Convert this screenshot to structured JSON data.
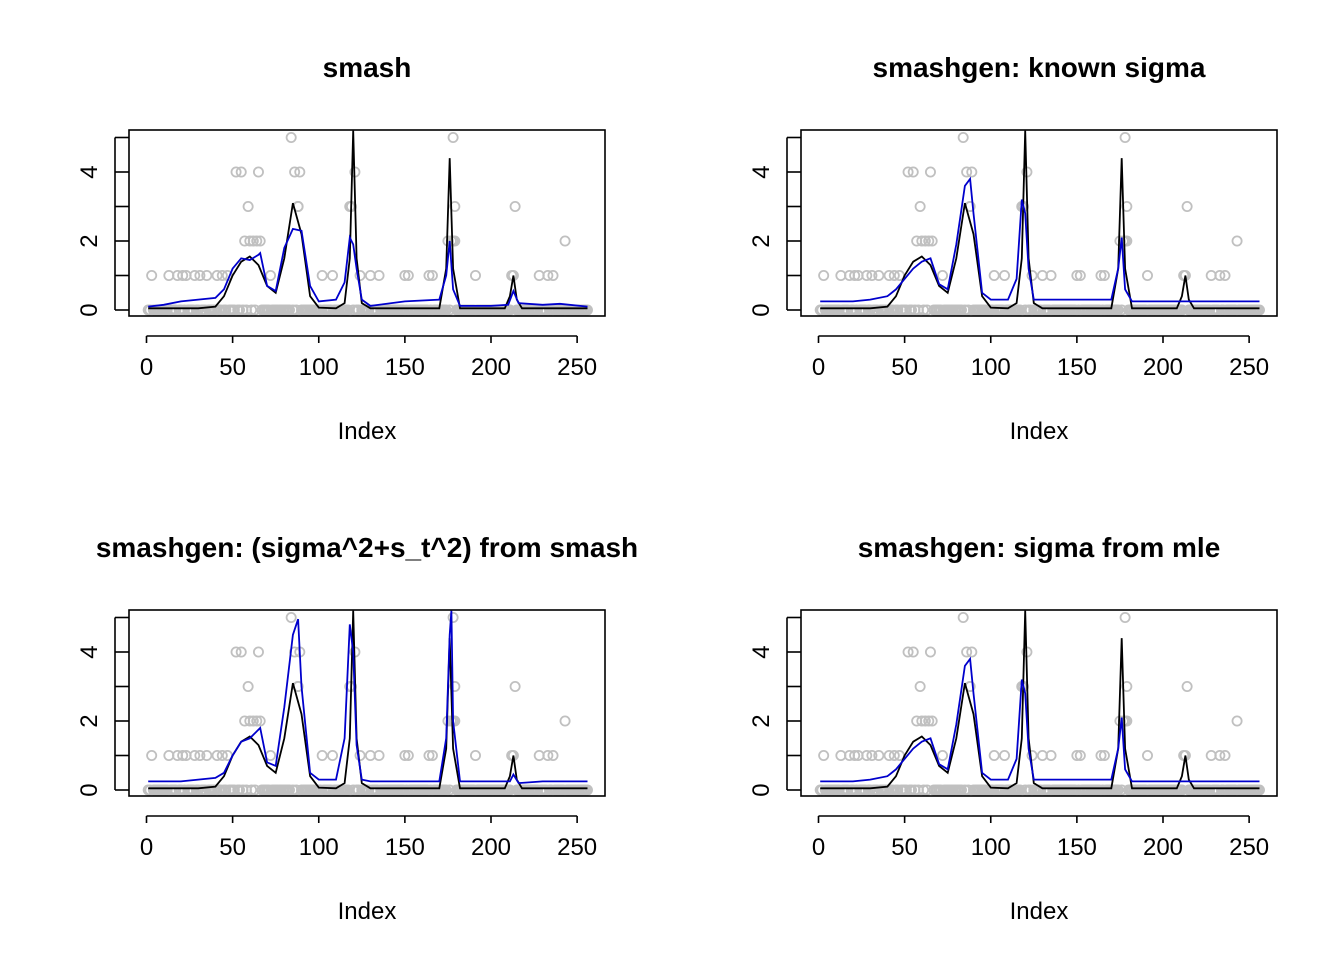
{
  "colors": {
    "observations": "#c0c0c0",
    "truth": "#000000",
    "estimate": "#0000cc"
  },
  "chart_data": [
    {
      "type": "line",
      "title": "smash",
      "xlabel": "Index",
      "ylabel": "",
      "xlim": [
        0,
        256
      ],
      "ylim": [
        0,
        5
      ],
      "xticks": [
        "0",
        "50",
        "100",
        "150",
        "200",
        "250"
      ],
      "yticks": [
        "0",
        "2",
        "4"
      ],
      "truth": {
        "x": [
          1,
          30,
          40,
          45,
          50,
          55,
          60,
          65,
          70,
          75,
          80,
          85,
          90,
          95,
          100,
          110,
          115,
          118,
          120,
          122,
          125,
          130,
          150,
          170,
          174,
          176,
          178,
          182,
          200,
          208,
          211,
          213,
          215,
          218,
          250,
          256
        ],
        "y": [
          0.05,
          0.05,
          0.1,
          0.4,
          1.0,
          1.4,
          1.55,
          1.3,
          0.7,
          0.5,
          1.5,
          3.1,
          2.2,
          0.4,
          0.07,
          0.05,
          0.2,
          1.5,
          5.2,
          1.5,
          0.2,
          0.05,
          0.05,
          0.05,
          1.2,
          4.4,
          1.2,
          0.05,
          0.05,
          0.05,
          0.4,
          1.0,
          0.3,
          0.05,
          0.05,
          0.05
        ]
      },
      "estimate": {
        "x": [
          1,
          10,
          20,
          30,
          40,
          45,
          50,
          55,
          60,
          65,
          66,
          70,
          75,
          80,
          85,
          90,
          95,
          100,
          110,
          115,
          118,
          120,
          122,
          125,
          130,
          150,
          170,
          174,
          176,
          178,
          182,
          200,
          210,
          213,
          216,
          230,
          240,
          256
        ],
        "y": [
          0.1,
          0.15,
          0.25,
          0.3,
          0.35,
          0.6,
          1.2,
          1.5,
          1.45,
          1.6,
          1.65,
          0.7,
          0.55,
          1.8,
          2.35,
          2.3,
          0.7,
          0.25,
          0.3,
          0.8,
          2.1,
          1.9,
          1.2,
          0.3,
          0.12,
          0.25,
          0.3,
          1.0,
          2.0,
          0.6,
          0.12,
          0.12,
          0.15,
          0.55,
          0.2,
          0.15,
          0.18,
          0.1
        ]
      },
      "observations": {
        "x": [
          3,
          13,
          18,
          21,
          23,
          28,
          31,
          35,
          41,
          44,
          47,
          52,
          55,
          57,
          59,
          60,
          62,
          64,
          66,
          65,
          72,
          84,
          86,
          88,
          88,
          89,
          102,
          108,
          118,
          119,
          121,
          124,
          130,
          135,
          150,
          152,
          164,
          166,
          175,
          177,
          178,
          178,
          179,
          179,
          191,
          212,
          213,
          214,
          228,
          233,
          236,
          243
        ],
        "y": [
          1,
          1,
          1,
          1,
          1,
          1,
          1,
          1,
          1,
          1,
          1,
          4,
          4,
          2,
          3,
          2,
          2,
          2,
          2,
          4,
          1,
          5,
          4,
          3,
          3,
          4,
          1,
          1,
          3,
          3,
          4,
          1,
          1,
          1,
          1,
          1,
          1,
          1,
          2,
          2,
          2,
          5,
          3,
          2,
          1,
          1,
          1,
          3,
          1,
          1,
          1,
          2
        ]
      }
    },
    {
      "type": "line",
      "title": "smashgen: known sigma",
      "xlabel": "Index",
      "ylabel": "",
      "xlim": [
        0,
        256
      ],
      "ylim": [
        0,
        5
      ],
      "xticks": [
        "0",
        "50",
        "100",
        "150",
        "200",
        "250"
      ],
      "yticks": [
        "0",
        "2",
        "4"
      ],
      "truth": {
        "x": [
          1,
          30,
          40,
          45,
          50,
          55,
          60,
          65,
          70,
          75,
          80,
          85,
          90,
          95,
          100,
          110,
          115,
          118,
          120,
          122,
          125,
          130,
          150,
          170,
          174,
          176,
          178,
          182,
          200,
          208,
          211,
          213,
          215,
          218,
          250,
          256
        ],
        "y": [
          0.05,
          0.05,
          0.1,
          0.4,
          1.0,
          1.4,
          1.55,
          1.3,
          0.7,
          0.5,
          1.5,
          3.1,
          2.2,
          0.4,
          0.07,
          0.05,
          0.2,
          1.5,
          5.2,
          1.5,
          0.2,
          0.05,
          0.05,
          0.05,
          1.2,
          4.4,
          1.2,
          0.05,
          0.05,
          0.05,
          0.4,
          1.0,
          0.3,
          0.05,
          0.05,
          0.05
        ]
      },
      "estimate": {
        "x": [
          1,
          20,
          30,
          40,
          45,
          50,
          55,
          60,
          65,
          70,
          75,
          80,
          85,
          88,
          90,
          95,
          100,
          110,
          115,
          118,
          120,
          122,
          125,
          130,
          150,
          170,
          174,
          176,
          178,
          182,
          200,
          213,
          230,
          256
        ],
        "y": [
          0.25,
          0.25,
          0.3,
          0.4,
          0.6,
          0.9,
          1.2,
          1.4,
          1.5,
          0.75,
          0.6,
          1.9,
          3.6,
          3.8,
          2.8,
          0.5,
          0.3,
          0.3,
          0.9,
          3.2,
          2.8,
          1.2,
          0.3,
          0.3,
          0.3,
          0.3,
          1.2,
          2.1,
          0.6,
          0.25,
          0.25,
          0.25,
          0.25,
          0.25
        ]
      },
      "observations": {
        "x": [
          3,
          13,
          18,
          21,
          23,
          28,
          31,
          35,
          41,
          44,
          47,
          52,
          55,
          57,
          59,
          60,
          62,
          64,
          66,
          65,
          72,
          84,
          86,
          88,
          88,
          89,
          102,
          108,
          118,
          119,
          121,
          124,
          130,
          135,
          150,
          152,
          164,
          166,
          175,
          177,
          178,
          178,
          179,
          179,
          191,
          212,
          213,
          214,
          228,
          233,
          236,
          243
        ],
        "y": [
          1,
          1,
          1,
          1,
          1,
          1,
          1,
          1,
          1,
          1,
          1,
          4,
          4,
          2,
          3,
          2,
          2,
          2,
          2,
          4,
          1,
          5,
          4,
          3,
          3,
          4,
          1,
          1,
          3,
          3,
          4,
          1,
          1,
          1,
          1,
          1,
          1,
          1,
          2,
          2,
          2,
          5,
          3,
          2,
          1,
          1,
          1,
          3,
          1,
          1,
          1,
          2
        ]
      }
    },
    {
      "type": "line",
      "title": "smashgen: (sigma^2+s_t^2) from smash",
      "xlabel": "Index",
      "ylabel": "",
      "xlim": [
        0,
        256
      ],
      "ylim": [
        0,
        5
      ],
      "xticks": [
        "0",
        "50",
        "100",
        "150",
        "200",
        "250"
      ],
      "yticks": [
        "0",
        "2",
        "4"
      ],
      "truth": {
        "x": [
          1,
          30,
          40,
          45,
          50,
          55,
          60,
          65,
          70,
          75,
          80,
          85,
          90,
          95,
          100,
          110,
          115,
          118,
          120,
          122,
          125,
          130,
          150,
          170,
          174,
          176,
          178,
          182,
          200,
          208,
          211,
          213,
          215,
          218,
          250,
          256
        ],
        "y": [
          0.05,
          0.05,
          0.1,
          0.4,
          1.0,
          1.4,
          1.55,
          1.3,
          0.7,
          0.5,
          1.5,
          3.1,
          2.2,
          0.4,
          0.07,
          0.05,
          0.2,
          1.5,
          5.2,
          1.5,
          0.2,
          0.05,
          0.05,
          0.05,
          1.2,
          4.4,
          1.2,
          0.05,
          0.05,
          0.05,
          0.4,
          1.0,
          0.3,
          0.05,
          0.05,
          0.05
        ]
      },
      "estimate": {
        "x": [
          1,
          20,
          30,
          40,
          45,
          50,
          55,
          60,
          65,
          66,
          70,
          75,
          80,
          85,
          88,
          90,
          95,
          100,
          110,
          115,
          118,
          120,
          122,
          125,
          130,
          150,
          170,
          174,
          176,
          177,
          178,
          182,
          200,
          211,
          213,
          216,
          230,
          256
        ],
        "y": [
          0.25,
          0.25,
          0.3,
          0.35,
          0.5,
          1.0,
          1.4,
          1.5,
          1.75,
          1.8,
          0.8,
          0.7,
          2.4,
          4.5,
          4.95,
          3.0,
          0.5,
          0.3,
          0.3,
          1.5,
          4.8,
          4.0,
          1.3,
          0.3,
          0.25,
          0.25,
          0.25,
          1.5,
          4.5,
          5.2,
          2.0,
          0.25,
          0.25,
          0.25,
          0.45,
          0.2,
          0.25,
          0.25
        ]
      },
      "observations": {
        "x": [
          3,
          13,
          18,
          21,
          23,
          28,
          31,
          35,
          41,
          44,
          47,
          52,
          55,
          57,
          59,
          60,
          62,
          64,
          66,
          65,
          72,
          84,
          86,
          88,
          88,
          89,
          102,
          108,
          118,
          119,
          121,
          124,
          130,
          135,
          150,
          152,
          164,
          166,
          175,
          177,
          178,
          178,
          179,
          179,
          191,
          212,
          213,
          214,
          228,
          233,
          236,
          243
        ],
        "y": [
          1,
          1,
          1,
          1,
          1,
          1,
          1,
          1,
          1,
          1,
          1,
          4,
          4,
          2,
          3,
          2,
          2,
          2,
          2,
          4,
          1,
          5,
          4,
          3,
          3,
          4,
          1,
          1,
          3,
          3,
          4,
          1,
          1,
          1,
          1,
          1,
          1,
          1,
          2,
          2,
          2,
          5,
          3,
          2,
          1,
          1,
          1,
          3,
          1,
          1,
          1,
          2
        ]
      }
    },
    {
      "type": "line",
      "title": "smashgen: sigma from mle",
      "xlabel": "Index",
      "ylabel": "",
      "xlim": [
        0,
        256
      ],
      "ylim": [
        0,
        5
      ],
      "xticks": [
        "0",
        "50",
        "100",
        "150",
        "200",
        "250"
      ],
      "yticks": [
        "0",
        "2",
        "4"
      ],
      "truth": {
        "x": [
          1,
          30,
          40,
          45,
          50,
          55,
          60,
          65,
          70,
          75,
          80,
          85,
          90,
          95,
          100,
          110,
          115,
          118,
          120,
          122,
          125,
          130,
          150,
          170,
          174,
          176,
          178,
          182,
          200,
          208,
          211,
          213,
          215,
          218,
          250,
          256
        ],
        "y": [
          0.05,
          0.05,
          0.1,
          0.4,
          1.0,
          1.4,
          1.55,
          1.3,
          0.7,
          0.5,
          1.5,
          3.1,
          2.2,
          0.4,
          0.07,
          0.05,
          0.2,
          1.5,
          5.2,
          1.5,
          0.2,
          0.05,
          0.05,
          0.05,
          1.2,
          4.4,
          1.2,
          0.05,
          0.05,
          0.05,
          0.4,
          1.0,
          0.3,
          0.05,
          0.05,
          0.05
        ]
      },
      "estimate": {
        "x": [
          1,
          20,
          30,
          40,
          45,
          50,
          55,
          60,
          65,
          70,
          75,
          80,
          85,
          88,
          90,
          95,
          100,
          110,
          115,
          118,
          120,
          122,
          125,
          130,
          150,
          170,
          174,
          176,
          178,
          182,
          200,
          213,
          230,
          256
        ],
        "y": [
          0.25,
          0.25,
          0.3,
          0.4,
          0.6,
          0.9,
          1.2,
          1.4,
          1.5,
          0.75,
          0.6,
          1.9,
          3.6,
          3.8,
          2.8,
          0.5,
          0.3,
          0.3,
          0.9,
          3.2,
          2.8,
          1.2,
          0.3,
          0.3,
          0.3,
          0.3,
          1.2,
          2.1,
          0.6,
          0.25,
          0.25,
          0.25,
          0.25,
          0.25
        ]
      },
      "observations": {
        "x": [
          3,
          13,
          18,
          21,
          23,
          28,
          31,
          35,
          41,
          44,
          47,
          52,
          55,
          57,
          59,
          60,
          62,
          64,
          66,
          65,
          72,
          84,
          86,
          88,
          88,
          89,
          102,
          108,
          118,
          119,
          121,
          124,
          130,
          135,
          150,
          152,
          164,
          166,
          175,
          177,
          178,
          178,
          179,
          179,
          191,
          212,
          213,
          214,
          228,
          233,
          236,
          243
        ],
        "y": [
          1,
          1,
          1,
          1,
          1,
          1,
          1,
          1,
          1,
          1,
          1,
          4,
          4,
          2,
          3,
          2,
          2,
          2,
          2,
          4,
          1,
          5,
          4,
          3,
          3,
          4,
          1,
          1,
          3,
          3,
          4,
          1,
          1,
          1,
          1,
          1,
          1,
          1,
          2,
          2,
          2,
          5,
          3,
          2,
          1,
          1,
          1,
          3,
          1,
          1,
          1,
          2
        ]
      }
    }
  ]
}
